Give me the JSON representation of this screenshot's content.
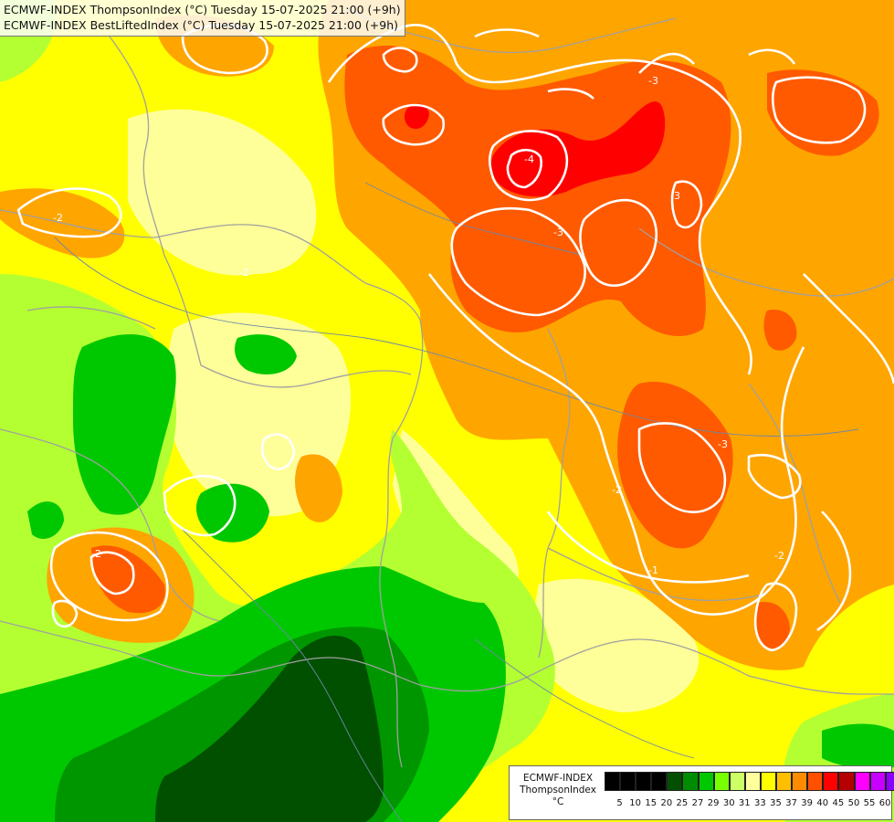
{
  "header": {
    "lines": [
      "ECMWF-INDEX ThompsonIndex (°C) Tuesday 15-07-2025 21:00 (+9h)",
      "ECMWF-INDEX BestLiftedIndex (°C) Tuesday 15-07-2025 21:00 (+9h)"
    ]
  },
  "legend": {
    "lines": [
      "ECMWF-INDEX",
      "ThompsonIndex",
      "°C"
    ],
    "ticks": [
      "5",
      "10",
      "15",
      "20",
      "25",
      "27",
      "29",
      "30",
      "31",
      "33",
      "35",
      "37",
      "39",
      "40",
      "45",
      "50",
      "55",
      "60"
    ],
    "colors": [
      "#000000",
      "#000000",
      "#000000",
      "#000000",
      "#005000",
      "#008c00",
      "#00c800",
      "#78ff00",
      "#ccff66",
      "#ffff9c",
      "#ffff00",
      "#ffbf00",
      "#ff8c00",
      "#ff5000",
      "#ff0000",
      "#b40000",
      "#ff00ff",
      "#c800ff",
      "#8c00ff",
      "#6400ff",
      "#0000ff"
    ]
  },
  "map": {
    "colors": {
      "dark_green": "#005000",
      "green": "#009600",
      "mid_green": "#00c800",
      "light_green": "#7cff00",
      "lime": "#b4ff32",
      "pale_yellow": "#ffff99",
      "yellow": "#ffff00",
      "orange": "#ffa500",
      "dark_orange": "#ff5a00",
      "red": "#ff0000",
      "contour": "#ffffff",
      "border": "#a0a0a0"
    },
    "contour_labels": [
      "-4",
      "-3",
      "-3",
      "-3",
      "-3",
      "-2",
      "-2",
      "-2",
      "-2",
      "-2",
      "-1"
    ]
  }
}
